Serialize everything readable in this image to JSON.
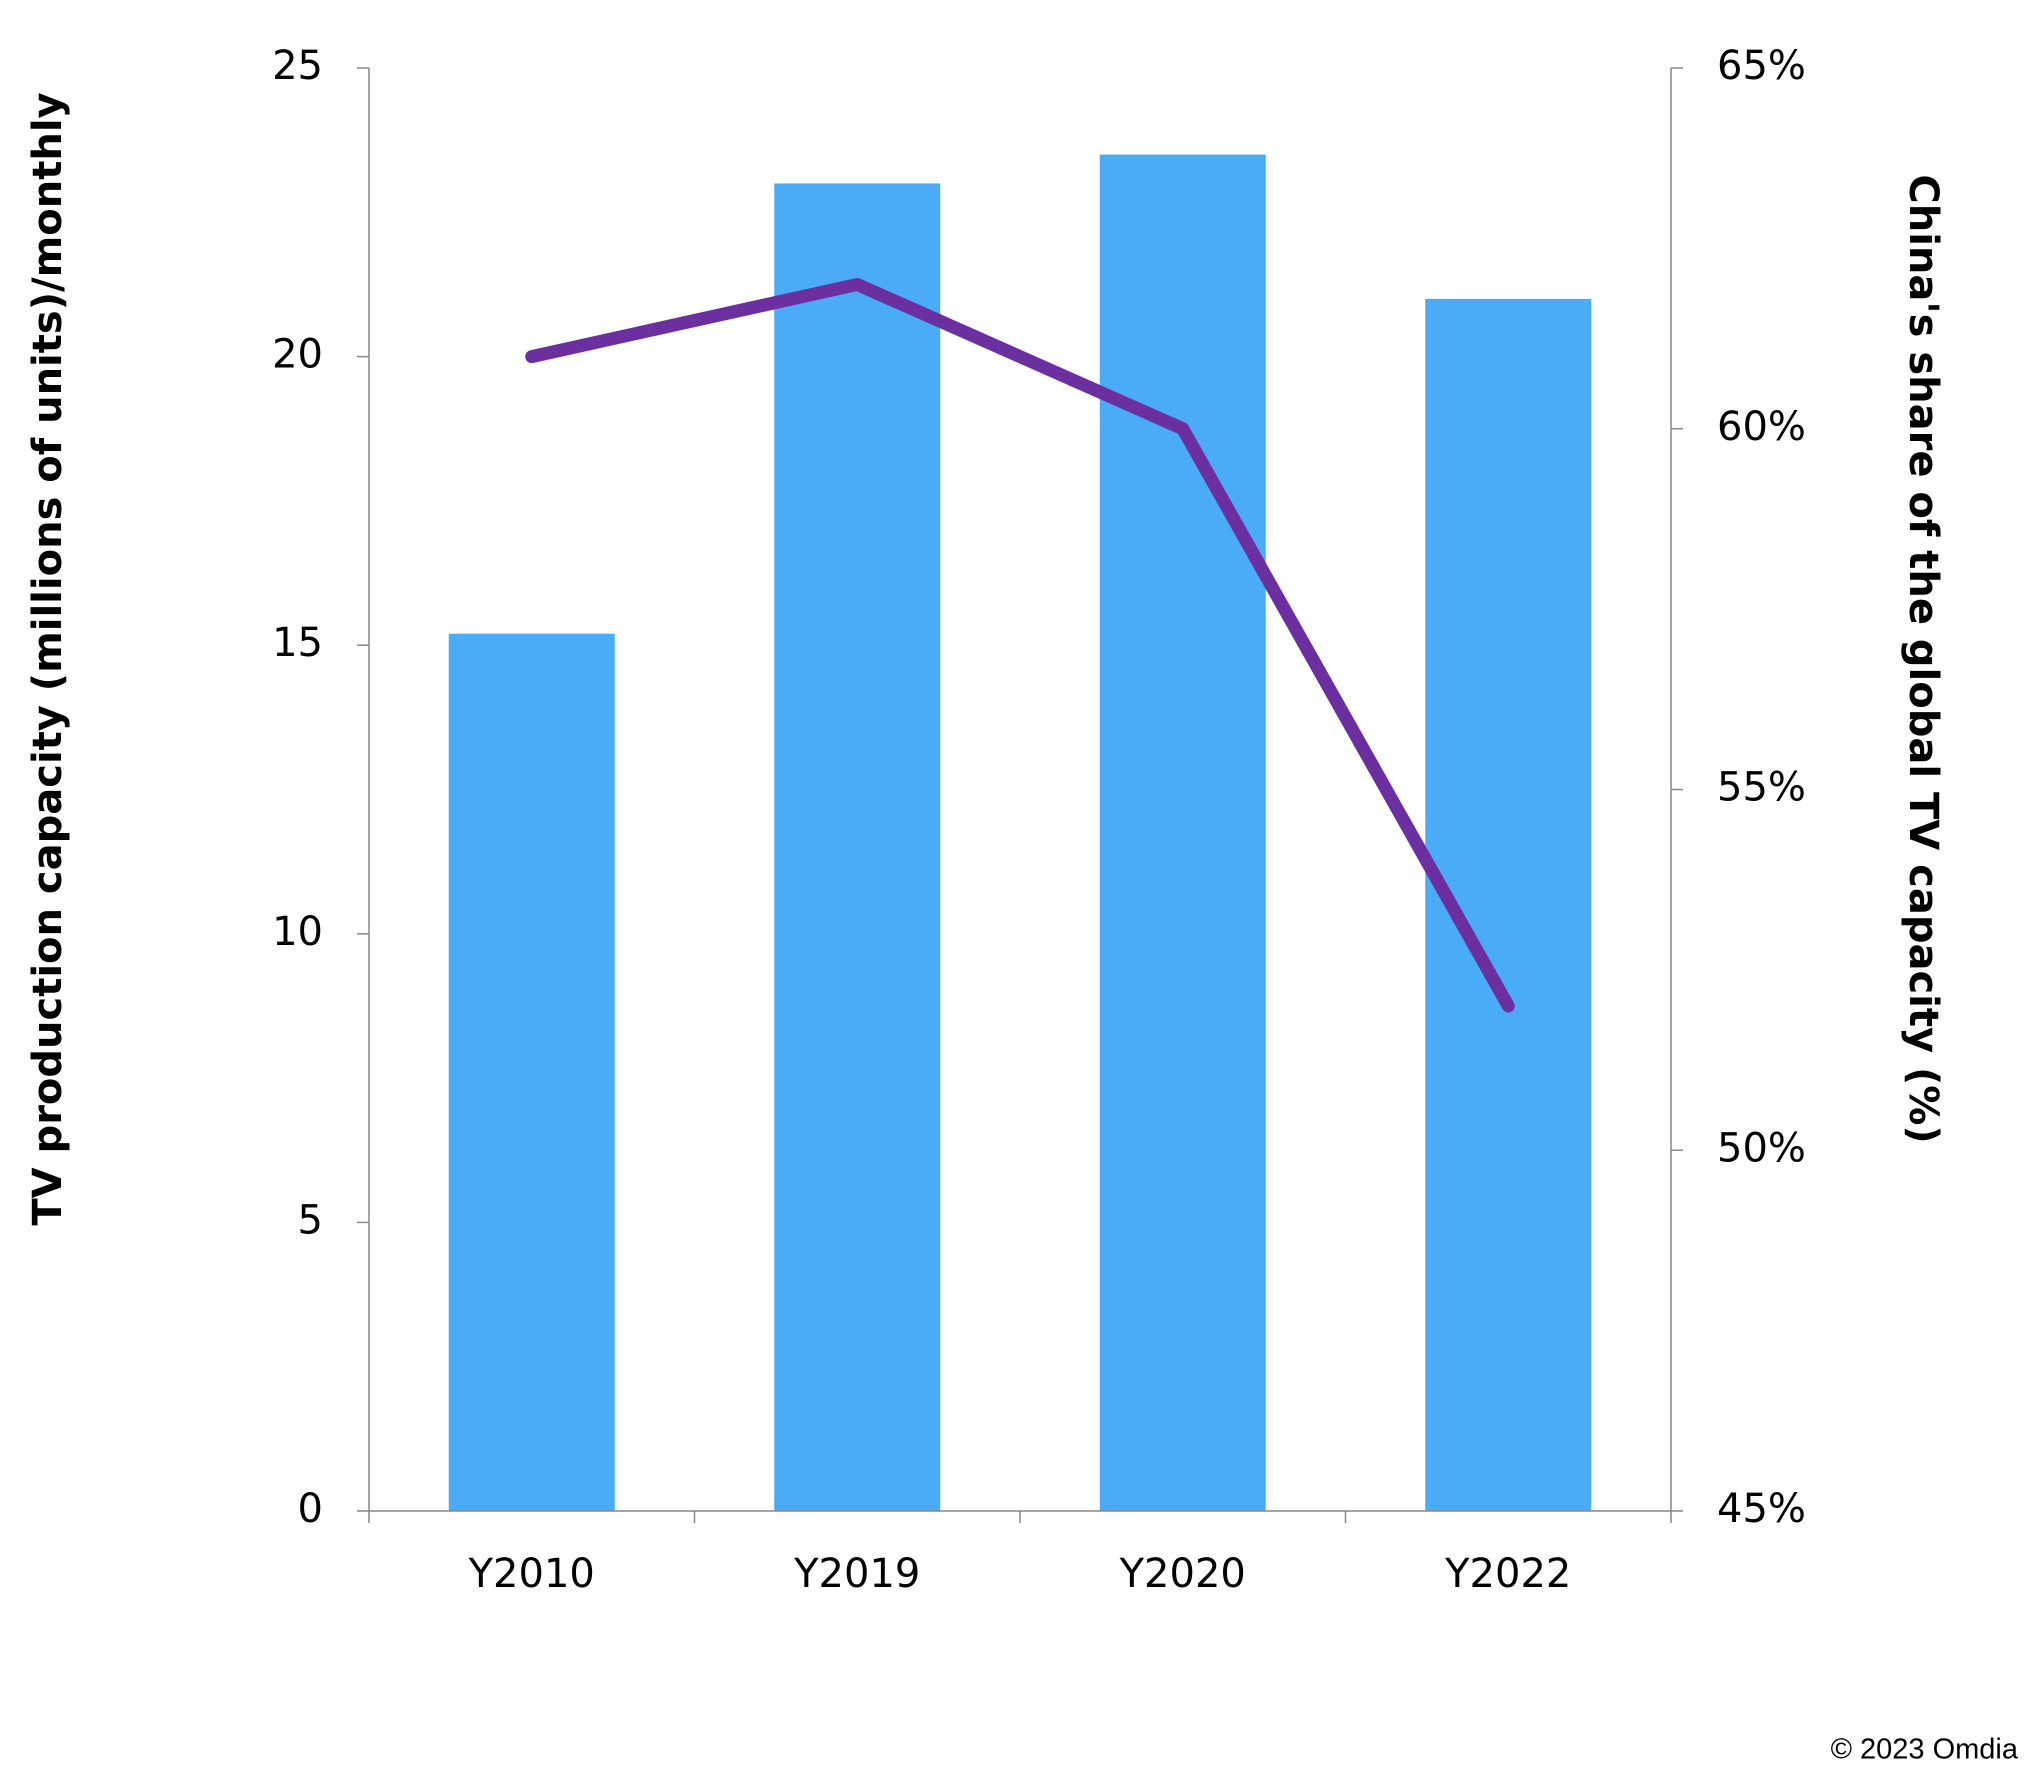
{
  "chart_data": {
    "type": "combo",
    "ylabel": "TV production capacity (millions of units)/monthly",
    "y2label": "China's share of the global TV capacity (%)",
    "categories": [
      "Y2010",
      "Y2019",
      "Y2020",
      "Y2022"
    ],
    "series": [
      {
        "type": "bar",
        "color": "#4aabf7",
        "values": [
          15.2,
          23.0,
          23.5,
          21.0
        ]
      },
      {
        "type": "line",
        "color": "#6b2fa0",
        "axis": "y2",
        "values": [
          61,
          62,
          60,
          52
        ]
      }
    ],
    "ylim": [
      0,
      25
    ],
    "yticks": [
      0,
      5,
      10,
      15,
      20,
      25
    ],
    "y2lim": [
      45,
      65
    ],
    "y2ticks": [
      {
        "value": 45,
        "label": "45%"
      },
      {
        "value": 50,
        "label": "50%"
      },
      {
        "value": 55,
        "label": "55%"
      },
      {
        "value": 60,
        "label": "60%"
      },
      {
        "value": 65,
        "label": "65%"
      }
    ],
    "grid": false,
    "source": "© 2023 Omdia"
  }
}
